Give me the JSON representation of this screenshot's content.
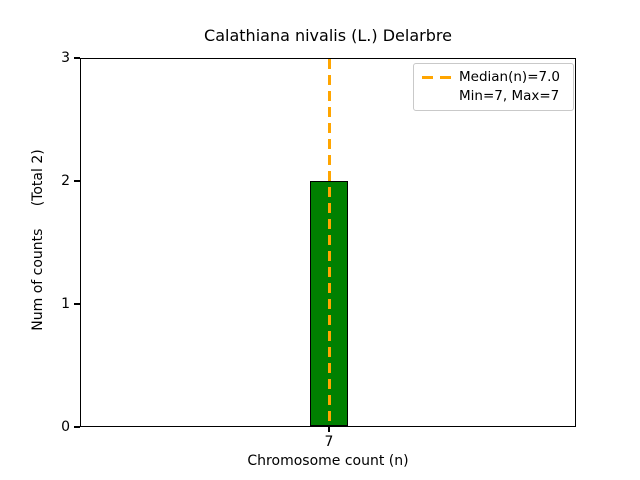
{
  "chart_data": {
    "type": "bar",
    "title": "Calathiana nivalis (L.) Delarbre",
    "xlabel": "Chromosome count (n)",
    "ylabel": "Num of counts     (Total 2)",
    "categories": [
      "7"
    ],
    "values": [
      2
    ],
    "total_counts": 2,
    "ylim": [
      0,
      3
    ],
    "yticks": [
      "0",
      "1",
      "2",
      "3"
    ],
    "xticks": [
      "7"
    ],
    "grid": false,
    "legend": {
      "position": "upper right",
      "entries": [
        "Median(n)=7.0",
        "Min=7, Max=7"
      ]
    },
    "median_line": {
      "x": 7.0,
      "style": "dashed"
    },
    "stats": {
      "median": 7.0,
      "min": 7,
      "max": 7
    },
    "colors": {
      "bar_fill": "#008000",
      "bar_edge": "#000000",
      "median_line": "#FFA500",
      "legend_border": "#c9c9c9",
      "axes": "#000000",
      "text": "#000000",
      "background": "#ffffff"
    }
  }
}
